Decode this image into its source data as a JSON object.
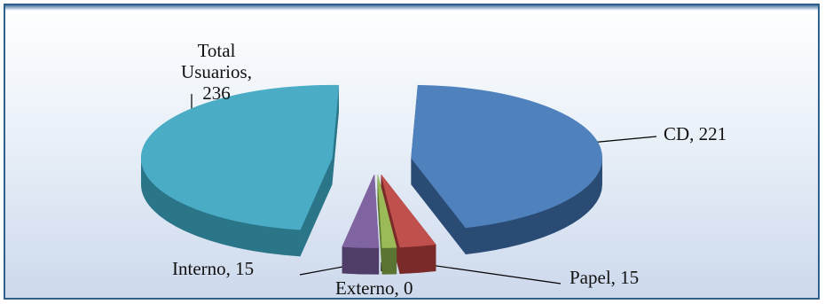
{
  "chart_data": {
    "type": "pie",
    "style": "3d-exploded",
    "title": "",
    "slices": [
      {
        "label": "CD",
        "value": 221,
        "color": "#4f81bd",
        "dark": "#2a4c74",
        "label_text": "CD, 221"
      },
      {
        "label": "Papel",
        "value": 15,
        "color": "#c0504d",
        "dark": "#7a2a28",
        "label_text": "Papel, 15"
      },
      {
        "label": "Externo",
        "value": 0,
        "color": "#9bbb59",
        "dark": "#5c7432",
        "label_text": "Externo, 0"
      },
      {
        "label": "Interno",
        "value": 15,
        "color": "#8064a2",
        "dark": "#4f3d68",
        "label_text": "Interno, 15"
      },
      {
        "label": "Total Usuarios",
        "value": 236,
        "color": "#4bacc6",
        "dark": "#2b7589",
        "label_text": "Total\nUsuarios,\n236"
      }
    ]
  }
}
